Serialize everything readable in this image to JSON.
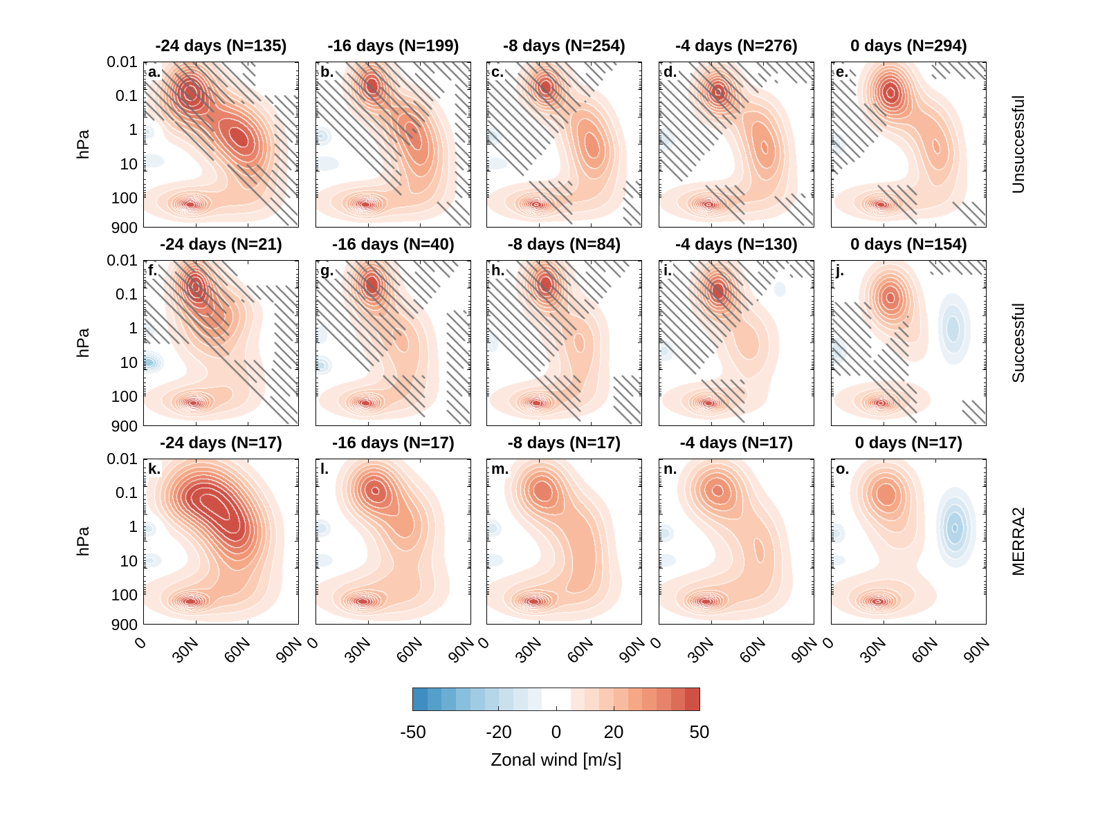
{
  "chart_data": {
    "type": "heatmap",
    "subtype": "filled-contour small multiples",
    "ylabel": "hPa",
    "xlabel": "",
    "yscale": "log",
    "yticks": [
      "0.01",
      "0.1",
      "1",
      "10",
      "100",
      "900"
    ],
    "ytick_values": [
      0.01,
      0.1,
      1,
      10,
      100,
      900
    ],
    "xticks": [
      "0",
      "30N",
      "60N",
      "90N"
    ],
    "xtick_values": [
      0,
      30,
      60,
      90
    ],
    "xlim": [
      0,
      90
    ],
    "ylim": [
      900,
      0.01
    ],
    "hatching_meaning": "significance stippling (hatched regions)",
    "rows": [
      {
        "label": "Unsuccessful",
        "panels": [
          {
            "letter": "a.",
            "title": "-24 days (N=135)",
            "lag_days": -24,
            "N": 135,
            "hatched": true
          },
          {
            "letter": "b.",
            "title": "-16 days (N=199)",
            "lag_days": -16,
            "N": 199,
            "hatched": true
          },
          {
            "letter": "c.",
            "title": "-8 days (N=254)",
            "lag_days": -8,
            "N": 254,
            "hatched": true
          },
          {
            "letter": "d.",
            "title": "-4 days (N=276)",
            "lag_days": -4,
            "N": 276,
            "hatched": true
          },
          {
            "letter": "e.",
            "title": "0 days (N=294)",
            "lag_days": 0,
            "N": 294,
            "hatched": true
          }
        ]
      },
      {
        "label": "Successful",
        "panels": [
          {
            "letter": "f.",
            "title": "-24 days (N=21)",
            "lag_days": -24,
            "N": 21,
            "hatched": true
          },
          {
            "letter": "g.",
            "title": "-16 days (N=40)",
            "lag_days": -16,
            "N": 40,
            "hatched": true
          },
          {
            "letter": "h.",
            "title": "-8 days (N=84)",
            "lag_days": -8,
            "N": 84,
            "hatched": true
          },
          {
            "letter": "i.",
            "title": "-4 days (N=130)",
            "lag_days": -4,
            "N": 130,
            "hatched": true
          },
          {
            "letter": "j.",
            "title": "0 days (N=154)",
            "lag_days": 0,
            "N": 154,
            "hatched": true
          }
        ]
      },
      {
        "label": "MERRA2",
        "panels": [
          {
            "letter": "k.",
            "title": "-24 days (N=17)",
            "lag_days": -24,
            "N": 17,
            "hatched": false
          },
          {
            "letter": "l.",
            "title": "-16 days (N=17)",
            "lag_days": -16,
            "N": 17,
            "hatched": false
          },
          {
            "letter": "m.",
            "title": "-8 days (N=17)",
            "lag_days": -8,
            "N": 17,
            "hatched": false
          },
          {
            "letter": "n.",
            "title": "-4 days (N=17)",
            "lag_days": -4,
            "N": 17,
            "hatched": false
          },
          {
            "letter": "o.",
            "title": "0 days (N=17)",
            "lag_days": 0,
            "N": 17,
            "hatched": false
          }
        ]
      }
    ],
    "colorbar": {
      "label": "Zonal wind [m/s]",
      "range": [
        -50,
        50
      ],
      "ticks": [
        "-50",
        "-20",
        "0",
        "20",
        "50"
      ],
      "tick_values": [
        -50,
        -20,
        0,
        20,
        50
      ],
      "bins": 20,
      "colors": [
        "#3f8dc1",
        "#559fcb",
        "#6cadd3",
        "#88bfdc",
        "#a0cbe2",
        "#b4d6e8",
        "#c9e0ed",
        "#dbe9f2",
        "#eaf2f8",
        "#ffffff",
        "#ffffff",
        "#fde8df",
        "#fcdccd",
        "#fbcbb3",
        "#f8bb9f",
        "#f4a886",
        "#ef9677",
        "#e6836a",
        "#dc6d59",
        "#cf5146"
      ]
    }
  }
}
